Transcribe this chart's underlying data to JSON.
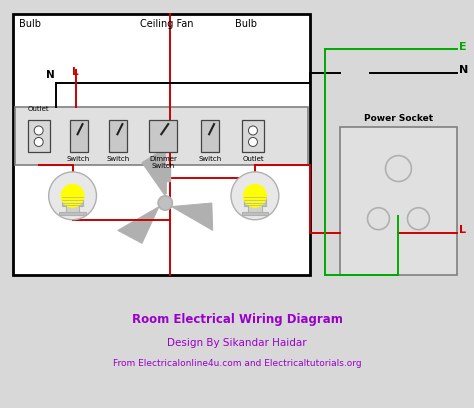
{
  "title": "Room Electrical Wiring Diagram",
  "subtitle1": "Design By Sikandar Haidar",
  "subtitle2": "From Electricalonline4u.com and Electricaltutorials.org",
  "text_color": "#9900cc",
  "bg_color": "#d8d8d8",
  "white": "#ffffff",
  "gray_light": "#e0e0e0",
  "gray_med": "#b0b0b0",
  "gray_dark": "#808080",
  "black": "#000000",
  "red": "#cc0000",
  "green": "#00aa00",
  "yellow": "#ffff00",
  "wire_lw": 1.4,
  "border_lw": 1.8,
  "figw": 4.74,
  "figh": 4.08,
  "dpi": 100
}
